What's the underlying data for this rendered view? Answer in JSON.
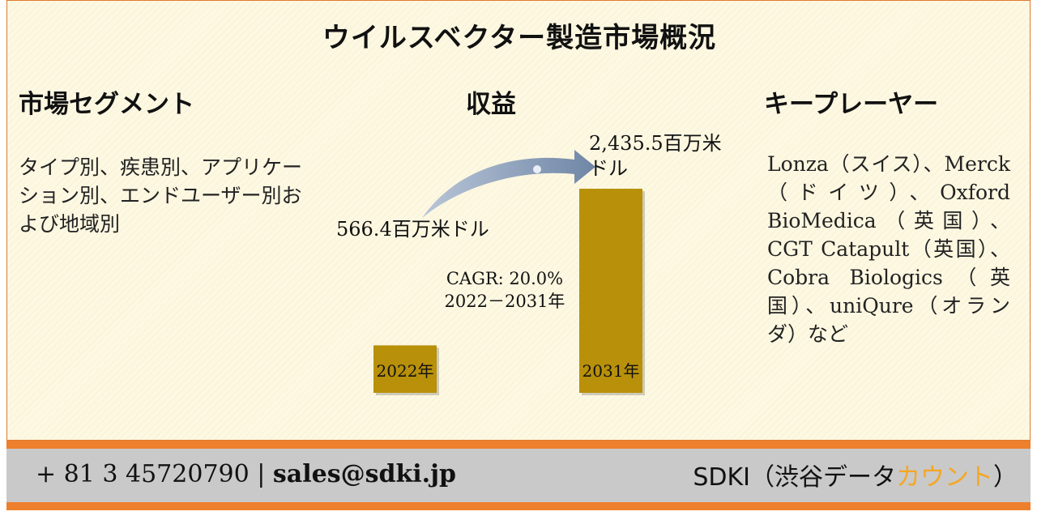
{
  "title": "ウイルスベクター製造市場概況",
  "segments": {
    "heading": "市場セグメント",
    "text": "タイプ別、疾患別、アプリケーション別、エンドユーザー別および地域別"
  },
  "revenue": {
    "heading": "収益"
  },
  "players": {
    "heading": "キープレーヤー",
    "text": "Lonza（スイス）、Merck（ドイツ）、Oxford BioMedica（英国）、CGT Catapult（英国）、Cobra Biologics（英国）、uniQure（オランダ）など"
  },
  "chart_data": {
    "type": "bar",
    "categories": [
      "2022年",
      "2031年"
    ],
    "values": [
      566.4,
      2435.5
    ],
    "value_labels": [
      "566.4百万米ドル",
      "2,435.5百万米ドル"
    ],
    "annotation": [
      "CAGR: 20.0%",
      "2022－2031年"
    ],
    "bar_color": "#b8900a",
    "arrow_color": "#7e93b0",
    "grid": false,
    "legend": "none"
  },
  "footer": {
    "phone": "+ 81 3 45720790",
    "separator": "|",
    "email": "sales@sdki.jp",
    "brand_prefix": "SDKI（渋谷データ",
    "brand_accent": "カウント",
    "brand_suffix": "）"
  }
}
